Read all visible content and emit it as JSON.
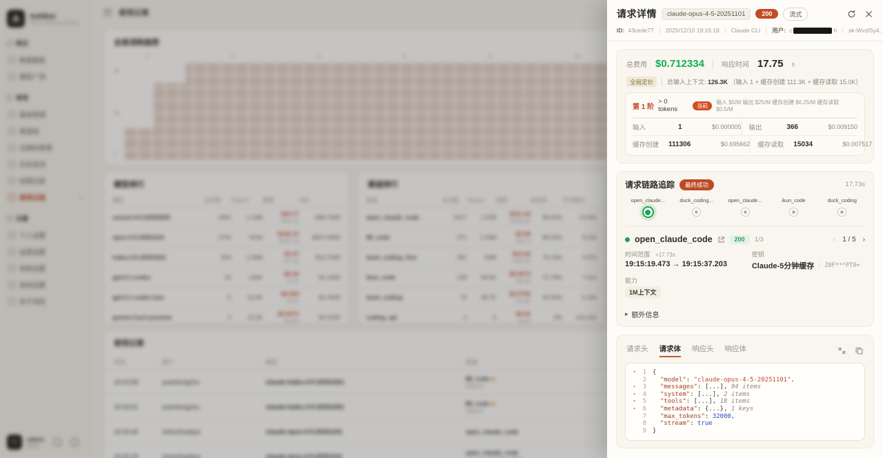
{
  "drawer": {
    "title": "请求详情",
    "model_badge": "claude-opus-4-5-20251101",
    "status_badge": "200",
    "stream_badge": "流式",
    "meta": {
      "id_label": "ID:",
      "id": "43cede77",
      "time": "2025/12/10 19:15:19",
      "client": "Claude CLI",
      "user_label": "用户:",
      "user_prefix": "c",
      "user_suffix": "h",
      "token": "sk-WvzlSy4...uwgB"
    },
    "cost": {
      "label": "总费用",
      "value": "$0.712334",
      "rt_label": "响应时间",
      "rt_value": "17.75",
      "rt_unit": "s"
    },
    "pricing": {
      "scope_badge": "全局定价",
      "ctx_label": "总输入上下文: ",
      "ctx_value": "126.3K",
      "ctx_detail": " （输入 1 + 缓存创建 111.3K + 缓存读取 15.0K）",
      "tier_no": "第 1 阶",
      "tier_cond": "> 0 tokens",
      "current_badge": "当前",
      "rates": "输入 $5/M  输出 $25/M  缓存创建 $6.25/M  缓存读取 $0.5/M",
      "cells": [
        {
          "label": "输入",
          "count": "1",
          "cost": "$0.000005"
        },
        {
          "label": "输出",
          "count": "366",
          "cost": "$0.009150"
        },
        {
          "label": "缓存创建",
          "count": "111306",
          "cost": "$0.695662"
        },
        {
          "label": "缓存读取",
          "count": "15034",
          "cost": "$0.007517"
        }
      ]
    },
    "trace": {
      "title": "请求链路追踪",
      "success_badge": "最终成功",
      "duration": "17.73s",
      "nodes": [
        {
          "label": "open_claude...",
          "state": "active"
        },
        {
          "label": "duck_coding...",
          "state": ""
        },
        {
          "label": "open_claude...",
          "state": ""
        },
        {
          "label": "ikun_code",
          "state": ""
        },
        {
          "label": "duck_coding",
          "state": ""
        }
      ],
      "current_name": "open_claude_code",
      "current_status": "200",
      "attempt": "1/3",
      "pager_prev": "‹",
      "pager_page": "1 / 5",
      "pager_next": "›",
      "time_range_label": "时间范围",
      "time_delta": "+17.73s",
      "time_range": "19:15:19.473 → 19:15:37.203",
      "key_label": "密钥",
      "key_name": "Claude-5分钟缓存",
      "key_value": "Z0F***PT0=",
      "ability_label": "能力",
      "ability": "1M上下文",
      "extra_label": "额外信息"
    },
    "body": {
      "tabs": [
        {
          "label": "请求头",
          "cls": ""
        },
        {
          "label": "请求体",
          "cls": "active"
        },
        {
          "label": "响应头",
          "cls": ""
        },
        {
          "label": "响应体",
          "cls": ""
        }
      ],
      "lines": [
        {
          "chev": "▾",
          "num": "1",
          "ind": "",
          "plain": "{"
        },
        {
          "chev": "",
          "num": "2",
          "ind": "  ",
          "key": "\"model\"",
          "colon": ": ",
          "val": "\"claude-opus-4-5-20251101\",",
          "vc": "str"
        },
        {
          "chev": "▸",
          "num": "3",
          "ind": "  ",
          "key": "\"messages\"",
          "colon": ": ",
          "val": "[...], ",
          "vc": "plain",
          "meta": "94 items"
        },
        {
          "chev": "▸",
          "num": "4",
          "ind": "  ",
          "key": "\"system\"",
          "colon": ": ",
          "val": "[...], ",
          "vc": "plain",
          "meta": "2 items"
        },
        {
          "chev": "▸",
          "num": "5",
          "ind": "  ",
          "key": "\"tools\"",
          "colon": ": ",
          "val": "[...], ",
          "vc": "plain",
          "meta": "18 items"
        },
        {
          "chev": "▸",
          "num": "6",
          "ind": "  ",
          "key": "\"metadata\"",
          "colon": ": ",
          "val": "{...}, ",
          "vc": "plain",
          "meta": "1 keys"
        },
        {
          "chev": "",
          "num": "7",
          "ind": "  ",
          "key": "\"max_tokens\"",
          "colon": ": ",
          "val": "32000,",
          "vc": "num"
        },
        {
          "chev": "",
          "num": "8",
          "ind": "  ",
          "key": "\"stream\"",
          "colon": ": ",
          "val": "true",
          "vc": "bool"
        },
        {
          "chev": "",
          "num": "9",
          "ind": "",
          "plain": "}"
        }
      ]
    }
  },
  "background": {
    "sidebar": {
      "logo_title": "AeNker",
      "logo_sub": "Next AI Gateway Service",
      "g1": {
        "label": "概览",
        "items": [
          {
            "label": "数据看板"
          },
          {
            "label": "模型广场"
          }
        ]
      },
      "g2": {
        "label": "管理",
        "items": [
          {
            "label": "渠道管理"
          },
          {
            "label": "渠道组"
          },
          {
            "label": "兑换码管理"
          },
          {
            "label": "日志查询"
          },
          {
            "label": "绘图记录"
          },
          {
            "label": "使用记录",
            "cls": "active",
            "arrow": "›"
          }
        ]
      },
      "g3": {
        "label": "设置",
        "items": [
          {
            "label": "个人设置"
          },
          {
            "label": "运营设置"
          },
          {
            "label": "系统设置"
          },
          {
            "label": "其他设置"
          },
          {
            "label": "关于项目"
          }
        ]
      },
      "user_name": "admin",
      "user_sub": "管理员"
    },
    "topbar": {
      "current": "使用记录"
    },
    "chart": {
      "title": "全局消耗趋势",
      "xticks": [
        "0",
        "2",
        "4",
        "6",
        "8",
        "10",
        "12",
        "14",
        "16"
      ],
      "yticks": [
        "2k",
        "1k",
        "0"
      ]
    },
    "chart_data": {
      "type": "heatmap",
      "title": "全局消耗趋势",
      "note": "dense pink cell grid, top-left cells empty (staircase), content blurred behind overlay"
    },
    "model_rank": {
      "title": "模型排行",
      "headers": [
        "模型",
        "总次数",
        "Tokens",
        "费用",
        "均价"
      ],
      "rows": [
        {
          "name": "sonnet-4-5-20250929",
          "count": "1602",
          "tokens": "1.13M",
          "cost": "$43.77",
          "cost2": "¥315.76",
          "avg": "$38.76/M"
        },
        {
          "name": "opus-4-5-20251101",
          "count": "1754",
          "tokens": "8130",
          "cost": "$146.37",
          "cost2": "¥1057.08",
          "avg": "$507.08/M"
        },
        {
          "name": "haiku-4-5-20251001",
          "count": "824",
          "tokens": "1.28M",
          "cost": "$2.47",
          "cost2": "¥17.84",
          "avg": "$13.70/M"
        },
        {
          "name": "gpt-5.1-codex",
          "count": "20",
          "tokens": "100K",
          "cost": "$0.40",
          "cost2": "¥2.92",
          "avg": "$1.43/M"
        },
        {
          "name": "gpt-5.1-codex-max",
          "count": "5",
          "tokens": "22.4K",
          "cost": "$0.056",
          "cost2": "¥0.41",
          "avg": "$1.45/M"
        },
        {
          "name": "gemini-3-pro-preview",
          "count": "5",
          "tokens": "13.2K",
          "cost": "$0.0073",
          "cost2": "¥0.053",
          "avg": "$2.42/M"
        },
        {
          "name": "gemini-3-pro-image-preview",
          "count": "1",
          "tokens": "0",
          "cost": "$0.38",
          "cost2": "¥2.78",
          "avg": ""
        }
      ]
    },
    "channel_rank": {
      "title": "渠道排行",
      "headers": [
        "渠道",
        "总次数",
        "Tokens",
        "费用",
        "成功率",
        "平均耗时"
      ],
      "rows": [
        {
          "name": "open_claude_code",
          "count": "2417",
          "tokens": "1.87B",
          "cost": "$311.44",
          "cost2": "¥2249.04",
          "rate": "98.42%",
          "time": "14.34s"
        },
        {
          "name": "88_code",
          "count": "471",
          "tokens": "1.26M",
          "cost": "$3.98",
          "cost2": "¥28.74",
          "rate": "88.03%",
          "time": "8.15s"
        },
        {
          "name": "duck_coding_free",
          "count": "331",
          "tokens": "63M",
          "cost": "$14.40",
          "cost2": "¥104.00",
          "rate": "76.13%",
          "time": "4.37s"
        },
        {
          "name": "ikun_code",
          "count": "138",
          "tokens": "93.5K",
          "cost": "$9.6073",
          "cost2": "¥69.39",
          "rate": "75.78%",
          "time": "7.51s"
        },
        {
          "name": "duck_coding",
          "count": "74",
          "tokens": "38.7K",
          "cost": "$2.0756",
          "cost2": "¥14.99",
          "rate": "45.95%",
          "time": "5.19s"
        },
        {
          "name": "coding_api",
          "count": "1",
          "tokens": "0",
          "cost": "$0.00",
          "cost2": "¥0.00",
          "rate": "0%",
          "time": "101.02s"
        }
      ]
    },
    "usage": {
      "title": "使用记录",
      "headers": [
        "时间",
        "用户",
        "模型",
        "渠道",
        "API端点"
      ],
      "rows": [
        {
          "time": "19:15:58",
          "user": "yuanhongzhu",
          "model": "claude-haiku-4-5-20251001",
          "channel": "88_code",
          "fire": "◆",
          "channel_sub": "fallback",
          "endpoint": "Claude CLI"
        },
        {
          "time": "19:15:51",
          "user": "yuanhongzhu",
          "model": "claude-haiku-4-5-20251001",
          "channel": "88_code",
          "fire": "◆",
          "channel_sub": "fallback",
          "endpoint": "Claude CLI"
        },
        {
          "time": "19:15:46",
          "user": "chenzhuaiqun",
          "model": "claude-opus-4-5-20251101",
          "channel": "open_claude_code",
          "fire": "",
          "channel_sub": "",
          "endpoint": "Claude CLI"
        },
        {
          "time": "19:15:19",
          "user": "chenzhuaiqun",
          "model": "claude-opus-4-5-20251101",
          "channel": "open_claude_code",
          "fire": "",
          "channel_sub": "Claude-5分钟缓存 · 重试",
          "endpoint": "Claude CLI"
        }
      ]
    }
  },
  "colors": {
    "accent_rust": "#c24d24",
    "money_green": "#0faf54",
    "success_green": "#1fa150",
    "card_cream": "#f9f6ef"
  },
  "icons": {
    "refresh": "refresh-icon",
    "close": "close-icon",
    "external": "external-link-icon",
    "collapse": "collapse-icon",
    "copy": "copy-icon"
  }
}
